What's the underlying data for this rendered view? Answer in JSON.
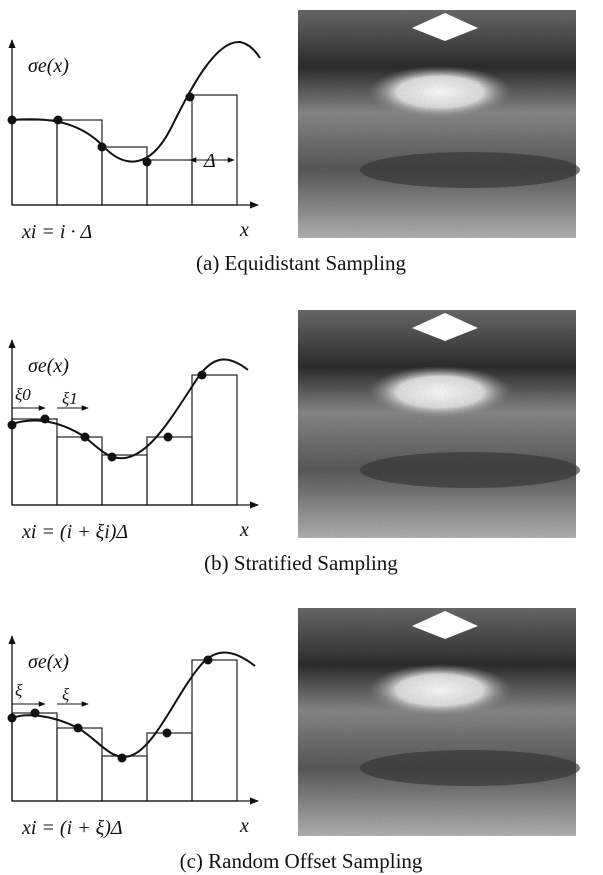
{
  "panels": [
    {
      "axis_label": "σe(x)",
      "formula": "xi = i · Δ",
      "x_label": "x",
      "annotations": [
        "Δ"
      ],
      "caption": "(a) Equidistant Sampling"
    },
    {
      "axis_label": "σe(x)",
      "formula": "xi = (i + ξi)Δ",
      "x_label": "x",
      "annotations": [
        "ξ0",
        "ξ1"
      ],
      "caption": "(b) Stratified Sampling"
    },
    {
      "axis_label": "σe(x)",
      "formula": "xi = (i + ξ)Δ",
      "x_label": "x",
      "annotations": [
        "ξ",
        "ξ"
      ],
      "caption": "(c) Random Offset Sampling"
    }
  ]
}
